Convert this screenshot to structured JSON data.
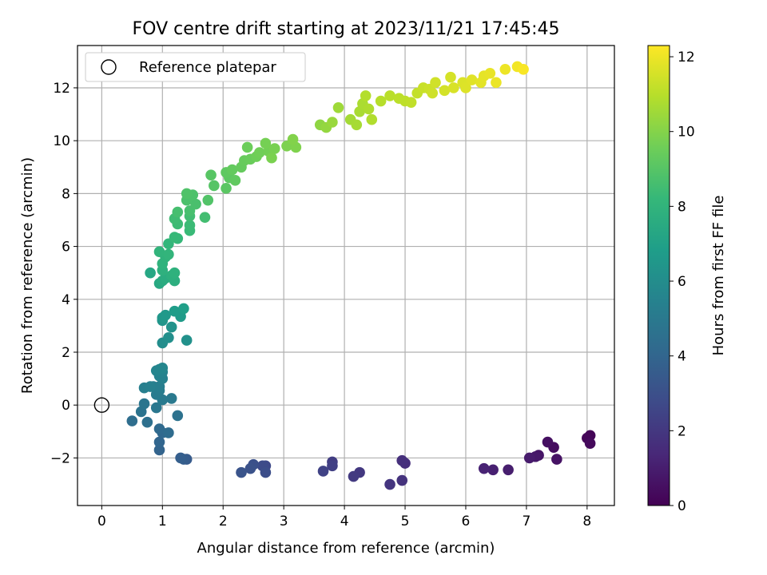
{
  "chart_data": {
    "type": "scatter",
    "title": "FOV centre drift starting at 2023/11/21 17:45:45",
    "xlabel": "Angular distance from reference (arcmin)",
    "ylabel": "Rotation from reference (arcmin)",
    "xlim": [
      -0.4,
      8.45
    ],
    "ylim": [
      -3.8,
      13.6
    ],
    "x_ticks": [
      0,
      1,
      2,
      3,
      4,
      5,
      6,
      7,
      8
    ],
    "y_ticks": [
      -2,
      0,
      2,
      4,
      6,
      8,
      10,
      12
    ],
    "grid": true,
    "legend": {
      "position": "top-left",
      "entries": [
        "Reference platepar"
      ]
    },
    "reference_point": {
      "x": 0,
      "y": 0
    },
    "colorbar": {
      "label": "Hours from first FF file",
      "range": [
        0,
        12.3
      ],
      "ticks": [
        0,
        2,
        4,
        6,
        8,
        10,
        12
      ],
      "colormap": [
        "#440154",
        "#482878",
        "#3e4a89",
        "#31688e",
        "#26828e",
        "#1f9e89",
        "#35b779",
        "#6ece58",
        "#b5de2b",
        "#fde725"
      ]
    },
    "series": [
      {
        "points": [
          {
            "x": 8.05,
            "y": -1.15,
            "h": 0.1
          },
          {
            "x": 8.0,
            "y": -1.25,
            "h": 0.2
          },
          {
            "x": 8.05,
            "y": -1.45,
            "h": 0.3
          },
          {
            "x": 7.45,
            "y": -1.6,
            "h": 0.4
          },
          {
            "x": 7.35,
            "y": -1.4,
            "h": 0.5
          },
          {
            "x": 7.5,
            "y": -2.05,
            "h": 0.6
          },
          {
            "x": 7.2,
            "y": -1.9,
            "h": 0.7
          },
          {
            "x": 7.15,
            "y": -1.95,
            "h": 0.8
          },
          {
            "x": 7.05,
            "y": -2.0,
            "h": 0.9
          },
          {
            "x": 6.7,
            "y": -2.45,
            "h": 1.0
          },
          {
            "x": 6.45,
            "y": -2.45,
            "h": 1.1
          },
          {
            "x": 6.3,
            "y": -2.4,
            "h": 1.2
          },
          {
            "x": 5.0,
            "y": -2.2,
            "h": 1.6
          },
          {
            "x": 4.95,
            "y": -2.1,
            "h": 1.7
          },
          {
            "x": 4.95,
            "y": -2.85,
            "h": 1.8
          },
          {
            "x": 4.75,
            "y": -3.0,
            "h": 1.9
          },
          {
            "x": 4.25,
            "y": -2.55,
            "h": 2.0
          },
          {
            "x": 4.15,
            "y": -2.7,
            "h": 2.1
          },
          {
            "x": 3.8,
            "y": -2.15,
            "h": 2.2
          },
          {
            "x": 3.8,
            "y": -2.3,
            "h": 2.3
          },
          {
            "x": 3.65,
            "y": -2.5,
            "h": 2.4
          },
          {
            "x": 2.7,
            "y": -2.3,
            "h": 2.7
          },
          {
            "x": 2.65,
            "y": -2.3,
            "h": 2.8
          },
          {
            "x": 2.7,
            "y": -2.55,
            "h": 2.9
          },
          {
            "x": 2.5,
            "y": -2.25,
            "h": 3.0
          },
          {
            "x": 2.45,
            "y": -2.4,
            "h": 3.1
          },
          {
            "x": 2.3,
            "y": -2.55,
            "h": 3.2
          },
          {
            "x": 1.4,
            "y": -2.05,
            "h": 3.5
          },
          {
            "x": 1.35,
            "y": -2.05,
            "h": 3.6
          },
          {
            "x": 1.3,
            "y": -2.0,
            "h": 3.7
          },
          {
            "x": 0.95,
            "y": -1.7,
            "h": 3.9
          },
          {
            "x": 0.95,
            "y": -1.4,
            "h": 4.0
          },
          {
            "x": 1.0,
            "y": -1.05,
            "h": 4.1
          },
          {
            "x": 0.95,
            "y": -0.9,
            "h": 4.2
          },
          {
            "x": 1.1,
            "y": -1.05,
            "h": 4.3
          },
          {
            "x": 0.5,
            "y": -0.6,
            "h": 4.4
          },
          {
            "x": 0.75,
            "y": -0.65,
            "h": 4.5
          },
          {
            "x": 1.25,
            "y": -0.4,
            "h": 4.6
          },
          {
            "x": 0.65,
            "y": -0.25,
            "h": 4.7
          },
          {
            "x": 0.7,
            "y": 0.05,
            "h": 4.8
          },
          {
            "x": 0.9,
            "y": -0.1,
            "h": 4.9
          },
          {
            "x": 1.15,
            "y": 0.25,
            "h": 5.0
          },
          {
            "x": 1.0,
            "y": 0.2,
            "h": 5.05
          },
          {
            "x": 0.9,
            "y": 0.4,
            "h": 5.1
          },
          {
            "x": 0.95,
            "y": 0.55,
            "h": 5.15
          },
          {
            "x": 0.85,
            "y": 0.7,
            "h": 5.2
          },
          {
            "x": 0.95,
            "y": 0.7,
            "h": 5.25
          },
          {
            "x": 0.7,
            "y": 0.65,
            "h": 5.3
          },
          {
            "x": 0.8,
            "y": 0.7,
            "h": 5.35
          },
          {
            "x": 1.0,
            "y": 1.0,
            "h": 5.4
          },
          {
            "x": 0.95,
            "y": 1.1,
            "h": 5.45
          },
          {
            "x": 1.0,
            "y": 1.25,
            "h": 5.5
          },
          {
            "x": 0.95,
            "y": 1.35,
            "h": 5.55
          },
          {
            "x": 0.9,
            "y": 1.3,
            "h": 5.6
          },
          {
            "x": 1.0,
            "y": 1.4,
            "h": 5.65
          },
          {
            "x": 1.0,
            "y": 2.35,
            "h": 6.0
          },
          {
            "x": 1.1,
            "y": 2.55,
            "h": 6.1
          },
          {
            "x": 1.4,
            "y": 2.45,
            "h": 6.2
          },
          {
            "x": 1.15,
            "y": 2.95,
            "h": 6.3
          },
          {
            "x": 1.0,
            "y": 3.2,
            "h": 6.4
          },
          {
            "x": 1.0,
            "y": 3.3,
            "h": 6.5
          },
          {
            "x": 1.05,
            "y": 3.4,
            "h": 6.6
          },
          {
            "x": 1.3,
            "y": 3.35,
            "h": 6.7
          },
          {
            "x": 1.2,
            "y": 3.55,
            "h": 6.8
          },
          {
            "x": 1.35,
            "y": 3.65,
            "h": 6.9
          },
          {
            "x": 0.8,
            "y": 5.0,
            "h": 7.3
          },
          {
            "x": 0.95,
            "y": 4.6,
            "h": 7.4
          },
          {
            "x": 1.0,
            "y": 4.7,
            "h": 7.5
          },
          {
            "x": 1.05,
            "y": 4.8,
            "h": 7.6
          },
          {
            "x": 1.2,
            "y": 4.7,
            "h": 7.7
          },
          {
            "x": 1.15,
            "y": 4.9,
            "h": 7.75
          },
          {
            "x": 1.0,
            "y": 5.1,
            "h": 7.8
          },
          {
            "x": 1.2,
            "y": 5.0,
            "h": 7.85
          },
          {
            "x": 1.0,
            "y": 5.35,
            "h": 7.9
          },
          {
            "x": 1.05,
            "y": 5.6,
            "h": 7.95
          },
          {
            "x": 0.95,
            "y": 5.8,
            "h": 8.0
          },
          {
            "x": 1.1,
            "y": 5.7,
            "h": 8.05
          },
          {
            "x": 1.1,
            "y": 6.1,
            "h": 8.1
          },
          {
            "x": 1.25,
            "y": 6.3,
            "h": 8.2
          },
          {
            "x": 1.2,
            "y": 6.35,
            "h": 8.25
          },
          {
            "x": 1.45,
            "y": 6.6,
            "h": 8.3
          },
          {
            "x": 1.45,
            "y": 6.8,
            "h": 8.35
          },
          {
            "x": 1.25,
            "y": 6.85,
            "h": 8.4
          },
          {
            "x": 1.2,
            "y": 7.05,
            "h": 8.45
          },
          {
            "x": 1.45,
            "y": 7.15,
            "h": 8.5
          },
          {
            "x": 1.7,
            "y": 7.1,
            "h": 8.55
          },
          {
            "x": 1.25,
            "y": 7.3,
            "h": 8.6
          },
          {
            "x": 1.45,
            "y": 7.35,
            "h": 8.65
          },
          {
            "x": 1.55,
            "y": 7.6,
            "h": 8.7
          },
          {
            "x": 1.4,
            "y": 7.75,
            "h": 8.75
          },
          {
            "x": 1.5,
            "y": 7.95,
            "h": 8.8
          },
          {
            "x": 1.4,
            "y": 8.0,
            "h": 8.85
          },
          {
            "x": 1.75,
            "y": 7.75,
            "h": 8.9
          },
          {
            "x": 1.85,
            "y": 8.3,
            "h": 9.0
          },
          {
            "x": 1.8,
            "y": 8.7,
            "h": 9.05
          },
          {
            "x": 2.05,
            "y": 8.2,
            "h": 9.1
          },
          {
            "x": 2.1,
            "y": 8.6,
            "h": 9.15
          },
          {
            "x": 2.05,
            "y": 8.8,
            "h": 9.2
          },
          {
            "x": 2.2,
            "y": 8.5,
            "h": 9.25
          },
          {
            "x": 2.15,
            "y": 8.9,
            "h": 9.3
          },
          {
            "x": 2.3,
            "y": 9.0,
            "h": 9.35
          },
          {
            "x": 2.35,
            "y": 9.25,
            "h": 9.4
          },
          {
            "x": 2.45,
            "y": 9.3,
            "h": 9.45
          },
          {
            "x": 2.4,
            "y": 9.75,
            "h": 9.5
          },
          {
            "x": 2.55,
            "y": 9.4,
            "h": 9.55
          },
          {
            "x": 2.6,
            "y": 9.55,
            "h": 9.6
          },
          {
            "x": 2.75,
            "y": 9.6,
            "h": 9.65
          },
          {
            "x": 2.7,
            "y": 9.9,
            "h": 9.7
          },
          {
            "x": 2.85,
            "y": 9.7,
            "h": 9.75
          },
          {
            "x": 2.8,
            "y": 9.35,
            "h": 9.8
          },
          {
            "x": 3.05,
            "y": 9.8,
            "h": 9.85
          },
          {
            "x": 3.2,
            "y": 9.75,
            "h": 9.9
          },
          {
            "x": 3.15,
            "y": 10.05,
            "h": 9.95
          },
          {
            "x": 3.6,
            "y": 10.6,
            "h": 10.2
          },
          {
            "x": 3.7,
            "y": 10.5,
            "h": 10.3
          },
          {
            "x": 3.8,
            "y": 10.7,
            "h": 10.4
          },
          {
            "x": 3.9,
            "y": 11.25,
            "h": 10.5
          },
          {
            "x": 4.1,
            "y": 10.8,
            "h": 10.6
          },
          {
            "x": 4.2,
            "y": 10.6,
            "h": 10.65
          },
          {
            "x": 4.25,
            "y": 11.1,
            "h": 10.7
          },
          {
            "x": 4.3,
            "y": 11.4,
            "h": 10.75
          },
          {
            "x": 4.4,
            "y": 11.2,
            "h": 10.8
          },
          {
            "x": 4.45,
            "y": 10.8,
            "h": 10.85
          },
          {
            "x": 4.35,
            "y": 11.7,
            "h": 10.9
          },
          {
            "x": 4.6,
            "y": 11.5,
            "h": 10.95
          },
          {
            "x": 4.75,
            "y": 11.7,
            "h": 11.0
          },
          {
            "x": 4.9,
            "y": 11.6,
            "h": 11.05
          },
          {
            "x": 5.0,
            "y": 11.5,
            "h": 11.1
          },
          {
            "x": 5.1,
            "y": 11.45,
            "h": 11.15
          },
          {
            "x": 5.2,
            "y": 11.8,
            "h": 11.2
          },
          {
            "x": 5.3,
            "y": 12.0,
            "h": 11.3
          },
          {
            "x": 5.4,
            "y": 11.95,
            "h": 11.35
          },
          {
            "x": 5.45,
            "y": 11.8,
            "h": 11.4
          },
          {
            "x": 5.5,
            "y": 12.2,
            "h": 11.45
          },
          {
            "x": 5.65,
            "y": 11.9,
            "h": 11.5
          },
          {
            "x": 5.75,
            "y": 12.4,
            "h": 11.55
          },
          {
            "x": 5.8,
            "y": 12.0,
            "h": 11.6
          },
          {
            "x": 5.95,
            "y": 12.2,
            "h": 11.65
          },
          {
            "x": 6.0,
            "y": 12.0,
            "h": 11.7
          },
          {
            "x": 6.1,
            "y": 12.3,
            "h": 11.75
          },
          {
            "x": 6.25,
            "y": 12.2,
            "h": 11.8
          },
          {
            "x": 6.3,
            "y": 12.45,
            "h": 11.85
          },
          {
            "x": 6.4,
            "y": 12.55,
            "h": 11.9
          },
          {
            "x": 6.5,
            "y": 12.2,
            "h": 11.95
          },
          {
            "x": 6.65,
            "y": 12.7,
            "h": 12.0
          },
          {
            "x": 6.85,
            "y": 12.8,
            "h": 12.1
          },
          {
            "x": 6.95,
            "y": 12.7,
            "h": 12.2
          }
        ]
      }
    ]
  }
}
